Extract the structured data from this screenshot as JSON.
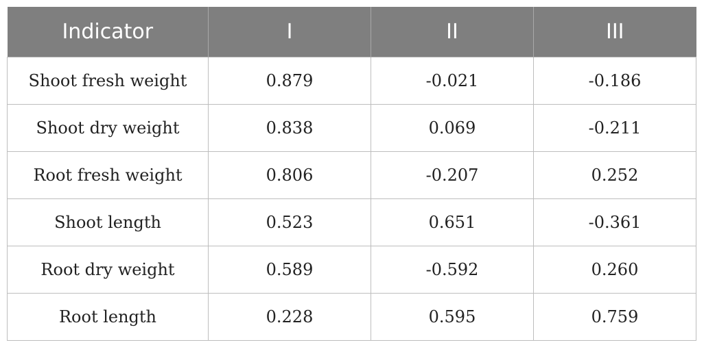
{
  "table": {
    "headers": [
      "Indicator",
      "I",
      "II",
      "III"
    ],
    "rows": [
      [
        "Shoot fresh weight",
        "0.879",
        "-0.021",
        "-0.186"
      ],
      [
        "Shoot dry weight",
        "0.838",
        "0.069",
        "-0.211"
      ],
      [
        "Root fresh weight",
        "0.806",
        "-0.207",
        "0.252"
      ],
      [
        "Shoot length",
        "0.523",
        "0.651",
        "-0.361"
      ],
      [
        "Root dry weight",
        "0.589",
        "-0.592",
        "0.260"
      ],
      [
        "Root length",
        "0.228",
        "0.595",
        "0.759"
      ]
    ]
  },
  "colors": {
    "header_bg": "#7f7f7f",
    "header_text": "#ffffff",
    "border": "#bdbdbd"
  }
}
